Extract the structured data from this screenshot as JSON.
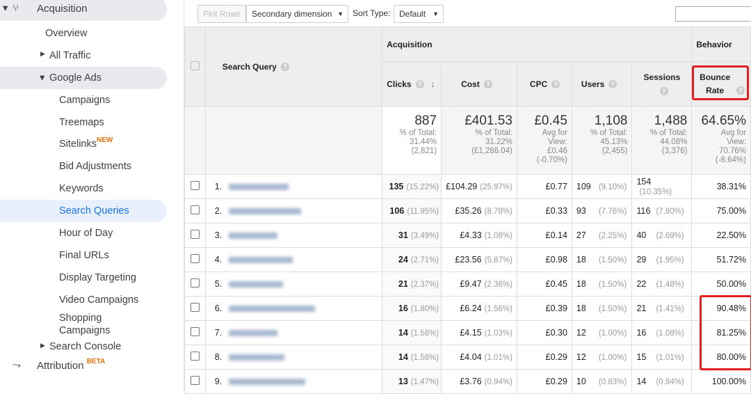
{
  "sidebar": {
    "acquisition": "Acquisition",
    "overview": "Overview",
    "all_traffic": "All Traffic",
    "google_ads": "Google Ads",
    "items": [
      "Campaigns",
      "Treemaps",
      "Sitelinks",
      "Bid Adjustments",
      "Keywords",
      "Search Queries",
      "Hour of Day",
      "Final URLs",
      "Display Targeting",
      "Video Campaigns",
      "Shopping Campaigns"
    ],
    "sitelinks_badge": "NEW",
    "search_console": "Search Console",
    "attribution": "Attribution",
    "attribution_badge": "BETA",
    "selected": "Search Queries"
  },
  "toolbar": {
    "plot_rows": "Plot Rows",
    "secondary_dimension": "Secondary dimension",
    "sort_type_label": "Sort Type:",
    "sort_type_value": "Default"
  },
  "table": {
    "dimension": "Search Query",
    "group_acquisition": "Acquisition",
    "group_behavior": "Behavior",
    "columns": [
      "Clicks",
      "Cost",
      "CPC",
      "Users",
      "Sessions",
      "Bounce Rate"
    ],
    "totals": [
      {
        "value": "887",
        "l1": "% of Total:",
        "l2": "31.44%",
        "l3": "(2,821)"
      },
      {
        "value": "£401.53",
        "l1": "% of Total:",
        "l2": "31.22%",
        "l3": "(£1,286.04)"
      },
      {
        "value": "£0.45",
        "l1": "Avg for",
        "l2": "View:",
        "l3": "£0.46",
        "l4": "(-0.70%)"
      },
      {
        "value": "1,108",
        "l1": "% of Total:",
        "l2": "45.13%",
        "l3": "(2,455)"
      },
      {
        "value": "1,488",
        "l1": "% of Total:",
        "l2": "44.08%",
        "l3": "(3,376)"
      },
      {
        "value": "64.65%",
        "l1": "Avg for",
        "l2": "View:",
        "l3": "70.76%",
        "l4": "(-8.64%)"
      }
    ],
    "rows": [
      {
        "n": "1.",
        "clicks": "135",
        "clicks_pct": "(15.22%)",
        "cost": "£104.29",
        "cost_pct": "(25.97%)",
        "cpc": "£0.77",
        "users": "109",
        "users_pct": "(9.10%)",
        "sessions": "154",
        "sessions_pct": "(10.35%)",
        "bounce": "38.31%"
      },
      {
        "n": "2.",
        "clicks": "106",
        "clicks_pct": "(11.95%)",
        "cost": "£35.26",
        "cost_pct": "(8.78%)",
        "cpc": "£0.33",
        "users": "93",
        "users_pct": "(7.76%)",
        "sessions": "116",
        "sessions_pct": "(7.80%)",
        "bounce": "75.00%"
      },
      {
        "n": "3.",
        "clicks": "31",
        "clicks_pct": "(3.49%)",
        "cost": "£4.33",
        "cost_pct": "(1.08%)",
        "cpc": "£0.14",
        "users": "27",
        "users_pct": "(2.25%)",
        "sessions": "40",
        "sessions_pct": "(2.69%)",
        "bounce": "22.50%"
      },
      {
        "n": "4.",
        "clicks": "24",
        "clicks_pct": "(2.71%)",
        "cost": "£23.56",
        "cost_pct": "(5.87%)",
        "cpc": "£0.98",
        "users": "18",
        "users_pct": "(1.50%)",
        "sessions": "29",
        "sessions_pct": "(1.95%)",
        "bounce": "51.72%"
      },
      {
        "n": "5.",
        "clicks": "21",
        "clicks_pct": "(2.37%)",
        "cost": "£9.47",
        "cost_pct": "(2.36%)",
        "cpc": "£0.45",
        "users": "18",
        "users_pct": "(1.50%)",
        "sessions": "22",
        "sessions_pct": "(1.48%)",
        "bounce": "50.00%"
      },
      {
        "n": "6.",
        "clicks": "16",
        "clicks_pct": "(1.80%)",
        "cost": "£6.24",
        "cost_pct": "(1.56%)",
        "cpc": "£0.39",
        "users": "18",
        "users_pct": "(1.50%)",
        "sessions": "21",
        "sessions_pct": "(1.41%)",
        "bounce": "90.48%"
      },
      {
        "n": "7.",
        "clicks": "14",
        "clicks_pct": "(1.58%)",
        "cost": "£4.15",
        "cost_pct": "(1.03%)",
        "cpc": "£0.30",
        "users": "12",
        "users_pct": "(1.00%)",
        "sessions": "16",
        "sessions_pct": "(1.08%)",
        "bounce": "81.25%"
      },
      {
        "n": "8.",
        "clicks": "14",
        "clicks_pct": "(1.58%)",
        "cost": "£4.04",
        "cost_pct": "(1.01%)",
        "cpc": "£0.29",
        "users": "12",
        "users_pct": "(1.00%)",
        "sessions": "15",
        "sessions_pct": "(1.01%)",
        "bounce": "80.00%"
      },
      {
        "n": "9.",
        "clicks": "13",
        "clicks_pct": "(1.47%)",
        "cost": "£3.76",
        "cost_pct": "(0.94%)",
        "cpc": "£0.29",
        "users": "10",
        "users_pct": "(0.83%)",
        "sessions": "14",
        "sessions_pct": "(0.94%)",
        "bounce": "100.00%"
      }
    ]
  },
  "colors": {
    "highlight": "#e02020",
    "selected_text": "#1a73e8",
    "badge": "#e8710a"
  }
}
